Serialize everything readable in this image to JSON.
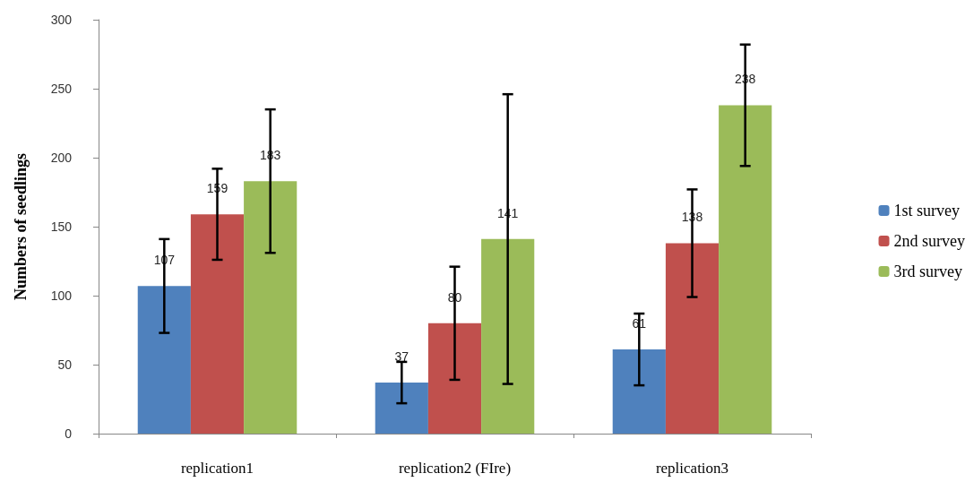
{
  "chart_data": {
    "type": "bar",
    "ylabel": "Numbers of seedlings",
    "categories": [
      "replication1",
      "replication2 (FIre)",
      "replication3"
    ],
    "series": [
      {
        "name": "1st survey",
        "color": "#4f81bd",
        "values": [
          107,
          37,
          61
        ],
        "errors": [
          34,
          15,
          26
        ]
      },
      {
        "name": "2nd survey",
        "color": "#c0504d",
        "values": [
          159,
          80,
          138
        ],
        "errors": [
          33,
          41,
          39
        ]
      },
      {
        "name": "3rd survey",
        "color": "#9bbb59",
        "values": [
          183,
          141,
          238
        ],
        "errors": [
          52,
          105,
          44
        ]
      }
    ],
    "ylim": [
      0,
      300
    ],
    "yticks": [
      0,
      50,
      100,
      150,
      200,
      250,
      300
    ],
    "data_labels": true,
    "grid": false,
    "legend": "right"
  }
}
